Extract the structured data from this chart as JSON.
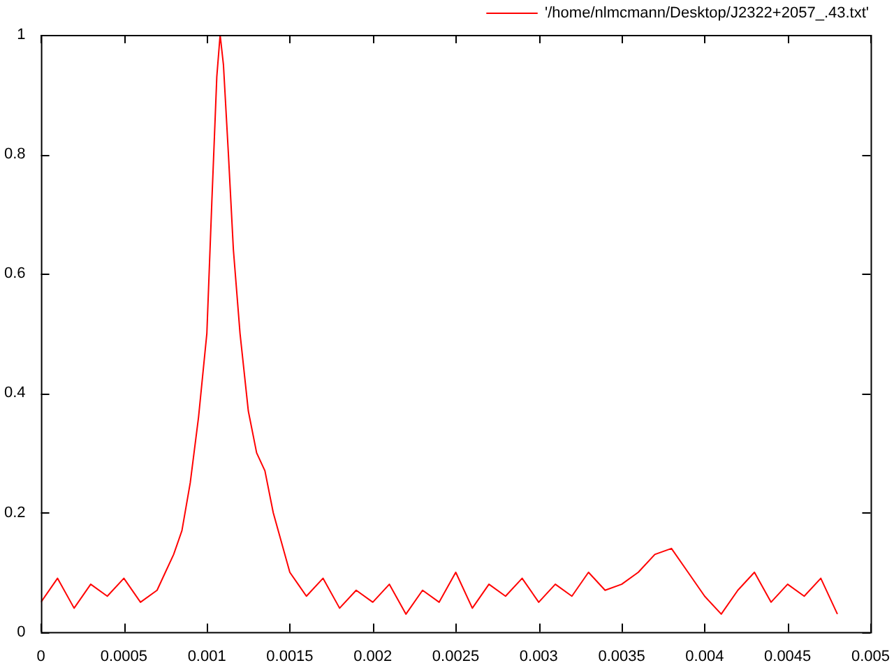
{
  "chart_data": {
    "type": "line",
    "legend": "top right",
    "marker": "none",
    "line_style": "solid",
    "xlim": [
      0,
      0.005
    ],
    "ylim": [
      0,
      1
    ],
    "xticks": [
      0,
      0.0005,
      0.001,
      0.0015,
      0.002,
      0.0025,
      0.003,
      0.0035,
      0.004,
      0.0045,
      0.005
    ],
    "yticks": [
      0,
      0.2,
      0.4,
      0.6,
      0.8,
      1
    ],
    "x": [
      0,
      0.0001,
      0.0002,
      0.0003,
      0.0004,
      0.0005,
      0.0006,
      0.0007,
      0.00075,
      0.0008,
      0.00085,
      0.0009,
      0.00095,
      0.001,
      0.00103,
      0.00106,
      0.00108,
      0.0011,
      0.00113,
      0.00116,
      0.0012,
      0.00125,
      0.0013,
      0.00135,
      0.0014,
      0.00145,
      0.0015,
      0.00155,
      0.0016,
      0.0017,
      0.0018,
      0.0019,
      0.002,
      0.0021,
      0.0022,
      0.0023,
      0.0024,
      0.0025,
      0.0026,
      0.0027,
      0.0028,
      0.0029,
      0.003,
      0.0031,
      0.0032,
      0.0033,
      0.0034,
      0.0035,
      0.0036,
      0.0037,
      0.0038,
      0.0039,
      0.004,
      0.0041,
      0.0042,
      0.0043,
      0.0044,
      0.0045,
      0.0046,
      0.0047,
      0.0048
    ],
    "series": [
      {
        "name": "'/home/nlmcmann/Desktop/J2322+2057_.43.txt'",
        "color": "#ff0000",
        "values": [
          0.05,
          0.09,
          0.04,
          0.08,
          0.06,
          0.09,
          0.05,
          0.07,
          0.1,
          0.13,
          0.17,
          0.25,
          0.36,
          0.5,
          0.72,
          0.93,
          1,
          0.95,
          0.8,
          0.64,
          0.5,
          0.37,
          0.3,
          0.27,
          0.2,
          0.15,
          0.1,
          0.08,
          0.06,
          0.09,
          0.04,
          0.07,
          0.05,
          0.08,
          0.03,
          0.07,
          0.05,
          0.1,
          0.04,
          0.08,
          0.06,
          0.09,
          0.05,
          0.08,
          0.06,
          0.1,
          0.07,
          0.08,
          0.1,
          0.13,
          0.14,
          0.1,
          0.06,
          0.03,
          0.07,
          0.1,
          0.05,
          0.08,
          0.06,
          0.09,
          0.03
        ]
      }
    ]
  }
}
